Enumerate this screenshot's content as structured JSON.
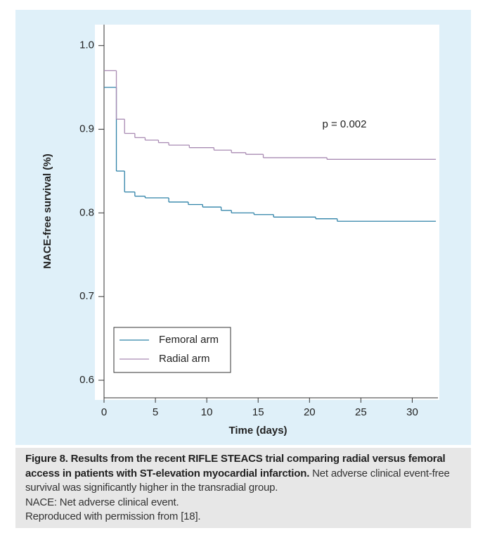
{
  "chart_data": {
    "type": "line",
    "step": "post",
    "y_label": "NACE-free survival (%)",
    "x_label": "Time (days)",
    "annotation": "p = 0.002",
    "xlim": [
      0,
      32.5
    ],
    "ylim": [
      0.579,
      1.025
    ],
    "xticks": [
      0,
      5,
      10,
      15,
      20,
      25,
      30
    ],
    "yticks": [
      {
        "value": 1,
        "label": "1.0"
      },
      0.9,
      0.8,
      0.7,
      0.6
    ],
    "legend": "lower left",
    "series": [
      {
        "name": "Femoral arm",
        "color": "#2f82a8",
        "x": [
          0,
          1.2,
          2,
          3,
          4,
          6.3,
          8.2,
          9.6,
          11.4,
          12.4,
          14.6,
          16.5,
          20.6,
          22.7,
          32.3
        ],
        "values": [
          0.95,
          0.85,
          0.825,
          0.82,
          0.818,
          0.813,
          0.81,
          0.807,
          0.803,
          0.8,
          0.798,
          0.795,
          0.793,
          0.79,
          0.79
        ]
      },
      {
        "name": "Radial arm",
        "color": "#a98bb3",
        "x": [
          0,
          1.2,
          2,
          3,
          4,
          5.3,
          6.3,
          8.3,
          10.7,
          12.4,
          13.8,
          15.5,
          21.7,
          32.3
        ],
        "values": [
          0.97,
          0.912,
          0.895,
          0.89,
          0.887,
          0.884,
          0.881,
          0.878,
          0.875,
          0.872,
          0.87,
          0.866,
          0.864,
          0.864
        ]
      }
    ]
  },
  "caption": {
    "title": "Figure 8. Results from the recent RIFLE STEACS trial comparing radial versus femoral access in patients with ST-elevation myocardial infarction.",
    "text": "Net adverse clinical event-free survival was significantly higher in the transradial group.",
    "abbreviation": "NACE: Net adverse clinical event.",
    "credit": "Reproduced with permission from [18]."
  }
}
